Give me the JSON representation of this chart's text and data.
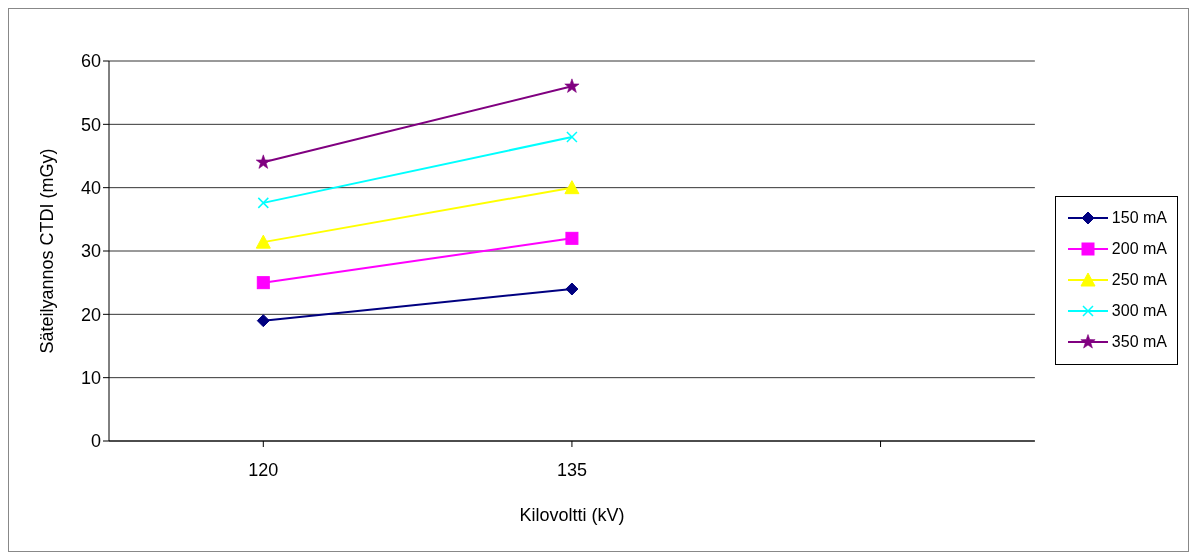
{
  "chart_data": {
    "type": "line",
    "xlabel": "Kilovoltti (kV)",
    "ylabel": "Säteilyannos CTDI (mGy)",
    "categories": [
      "120",
      "135",
      null
    ],
    "series": [
      {
        "name": "150 mA",
        "color": "#000080",
        "values": [
          19,
          24,
          null
        ],
        "marker": "diamond"
      },
      {
        "name": "200 mA",
        "color": "#ff00ff",
        "values": [
          25,
          32,
          null
        ],
        "marker": "square"
      },
      {
        "name": "250 mA",
        "color": "#ffff00",
        "values": [
          31.4,
          40,
          null
        ],
        "marker": "triangle"
      },
      {
        "name": "300 mA",
        "color": "#00ffff",
        "values": [
          37.6,
          48,
          null
        ],
        "marker": "cross"
      },
      {
        "name": "350 mA",
        "color": "#800080",
        "values": [
          44,
          56,
          null
        ],
        "marker": "star"
      }
    ],
    "ylim": [
      0,
      60
    ],
    "yticks": [
      0,
      10,
      20,
      30,
      40,
      50,
      60
    ],
    "grid": "y",
    "legend": "right",
    "line_style": "solid"
  }
}
